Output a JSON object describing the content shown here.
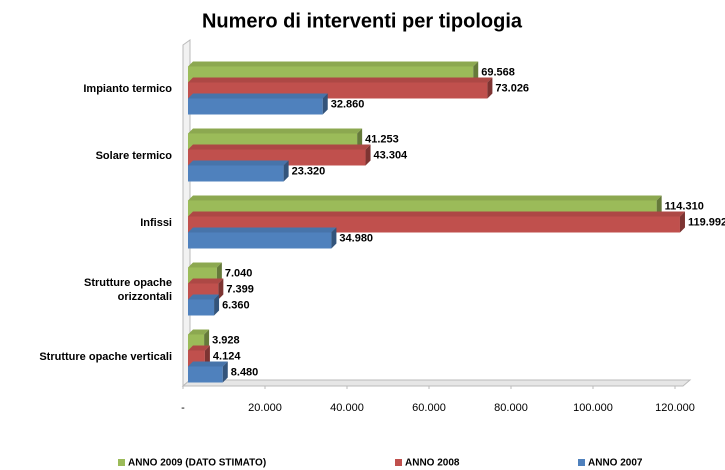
{
  "chart_data": {
    "type": "bar",
    "orientation": "horizontal",
    "title": "Numero di interventi per tipologia",
    "categories": [
      "Impianto termico",
      "Solare termico",
      "Infissi",
      "Strutture opache\norizzontali",
      "Strutture opache verticali"
    ],
    "series": [
      {
        "name": "ANNO 2009 (DATO STIMATO)",
        "color": "#9bbb59",
        "values": [
          69568,
          41253,
          114310,
          7040,
          3928
        ],
        "value_labels": [
          "69.568",
          "41.253",
          "114.310",
          "7.040",
          "3.928"
        ]
      },
      {
        "name": "ANNO 2008",
        "color": "#c0504d",
        "values": [
          73026,
          43304,
          119992,
          7399,
          4124
        ],
        "value_labels": [
          "73.026",
          "43.304",
          "119.992",
          "7.399",
          "4.124"
        ]
      },
      {
        "name": "ANNO 2007",
        "color": "#4f81bd",
        "values": [
          32860,
          23320,
          34980,
          6360,
          8480
        ],
        "value_labels": [
          "32.860",
          "23.320",
          "34.980",
          "6.360",
          "8.480"
        ]
      }
    ],
    "xlim": [
      0,
      120000
    ],
    "xticks": [
      {
        "value": 0,
        "label": "-"
      },
      {
        "value": 20000,
        "label": "20.000"
      },
      {
        "value": 40000,
        "label": "40.000"
      },
      {
        "value": 60000,
        "label": "60.000"
      },
      {
        "value": 80000,
        "label": "80.000"
      },
      {
        "value": 100000,
        "label": "100.000"
      },
      {
        "value": 120000,
        "label": "120.000"
      }
    ],
    "grid": false,
    "legend": "bottom"
  }
}
